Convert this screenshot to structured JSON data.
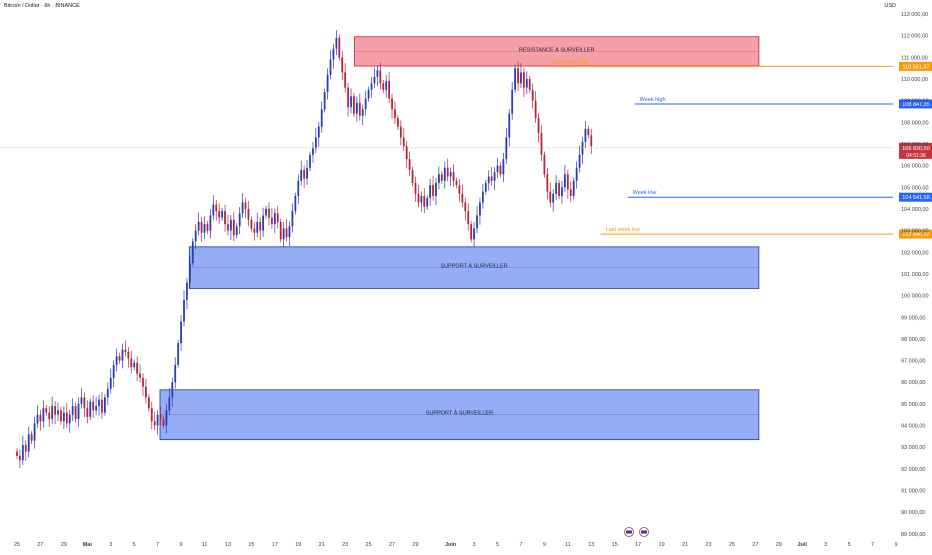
{
  "header": {
    "title": "Bitcoin / Dollar · 6h · BINANCE",
    "currency": "USD"
  },
  "colors": {
    "up": "#2a3cb5",
    "down": "#b5243b",
    "resistance_fill": "#f49aa1",
    "resistance_border": "#c0202f",
    "support_fill": "#8fa9f5",
    "support_border": "#1f3c9e",
    "orange": "#f59a0c",
    "blue_line": "#2962ff",
    "red_tag": "#c6343f",
    "axis_text": "#3a3e4a"
  },
  "chart_data": {
    "type": "candlestick",
    "title": "Bitcoin / Dollar · 6h · BINANCE",
    "y_axis": {
      "label": "USD",
      "range": [
        89000,
        113200
      ],
      "ticks": [
        {
          "value": 113000,
          "label": "113 000,00"
        },
        {
          "value": 112000,
          "label": "112 000,00"
        },
        {
          "value": 111000,
          "label": "111 000,00"
        },
        {
          "value": 110000,
          "label": "110 000,00"
        },
        {
          "value": 109000,
          "label": "109 000,00"
        },
        {
          "value": 108000,
          "label": "108 000,00"
        },
        {
          "value": 107000,
          "label": "107 000,00"
        },
        {
          "value": 106000,
          "label": "106 000,00"
        },
        {
          "value": 105000,
          "label": "105 000,00"
        },
        {
          "value": 104000,
          "label": "104 000,00"
        },
        {
          "value": 103000,
          "label": "103 000,00"
        },
        {
          "value": 102000,
          "label": "102 000,00"
        },
        {
          "value": 101000,
          "label": "101 000,00"
        },
        {
          "value": 100000,
          "label": "100 000,00"
        },
        {
          "value": 99000,
          "label": "99 000,00"
        },
        {
          "value": 98000,
          "label": "98 000,00"
        },
        {
          "value": 97000,
          "label": "97 000,00"
        },
        {
          "value": 96000,
          "label": "96 000,00"
        },
        {
          "value": 95000,
          "label": "95 000,00"
        },
        {
          "value": 94000,
          "label": "94 000,00"
        },
        {
          "value": 93000,
          "label": "93 000,00"
        },
        {
          "value": 92000,
          "label": "92 000,00"
        },
        {
          "value": 91000,
          "label": "91 000,00"
        },
        {
          "value": 90000,
          "label": "90 000,00"
        },
        {
          "value": 89000,
          "label": "89 000,00"
        }
      ]
    },
    "x_axis": {
      "ticks": [
        {
          "d": 0,
          "label": "25"
        },
        {
          "d": 2,
          "label": "27"
        },
        {
          "d": 4,
          "label": "29"
        },
        {
          "d": 6,
          "label": "Mai",
          "bold": true
        },
        {
          "d": 8,
          "label": "3"
        },
        {
          "d": 10,
          "label": "5"
        },
        {
          "d": 12,
          "label": "7"
        },
        {
          "d": 14,
          "label": "9"
        },
        {
          "d": 16,
          "label": "11"
        },
        {
          "d": 18,
          "label": "13"
        },
        {
          "d": 20,
          "label": "15"
        },
        {
          "d": 22,
          "label": "17"
        },
        {
          "d": 24,
          "label": "19"
        },
        {
          "d": 26,
          "label": "21"
        },
        {
          "d": 28,
          "label": "23"
        },
        {
          "d": 30,
          "label": "25"
        },
        {
          "d": 32,
          "label": "27"
        },
        {
          "d": 34,
          "label": "29"
        },
        {
          "d": 37,
          "label": "Juin",
          "bold": true
        },
        {
          "d": 39,
          "label": "3"
        },
        {
          "d": 41,
          "label": "5"
        },
        {
          "d": 43,
          "label": "7"
        },
        {
          "d": 45,
          "label": "9"
        },
        {
          "d": 47,
          "label": "11"
        },
        {
          "d": 49,
          "label": "13"
        },
        {
          "d": 51,
          "label": "15"
        },
        {
          "d": 53,
          "label": "17"
        },
        {
          "d": 55,
          "label": "19"
        },
        {
          "d": 57,
          "label": "21"
        },
        {
          "d": 59,
          "label": "23"
        },
        {
          "d": 61,
          "label": "25"
        },
        {
          "d": 63,
          "label": "27"
        },
        {
          "d": 65,
          "label": "29"
        },
        {
          "d": 67,
          "label": "Juil",
          "bold": true
        },
        {
          "d": 69,
          "label": "3"
        },
        {
          "d": 71,
          "label": "5"
        },
        {
          "d": 73,
          "label": "7"
        },
        {
          "d": 75,
          "label": "9"
        }
      ]
    },
    "zones": [
      {
        "name": "resistance",
        "label": "RESISTANCE À SURVEILLER",
        "top": 111950,
        "bottom": 110600,
        "d_start": 28.8,
        "d_end": 63.3
      },
      {
        "name": "support-upper",
        "label": "SUPPORT À SURVEILLER",
        "top": 102250,
        "bottom": 100330,
        "d_start": 14.7,
        "d_end": 63.3
      },
      {
        "name": "support-lower",
        "label": "SUPPORT À SURVEILLER",
        "top": 95650,
        "bottom": 93350,
        "d_start": 12.2,
        "d_end": 63.3
      }
    ],
    "levels": [
      {
        "name": "last-week-high",
        "label": "Last week high",
        "value": 110581.97,
        "tag": "110 581,97",
        "d_start": 45.2,
        "color": "orange"
      },
      {
        "name": "week-high",
        "label": "Week high",
        "value": 108847.35,
        "tag": "108 847,35",
        "d_start": 52.7,
        "color": "blue"
      },
      {
        "name": "week-low",
        "label": "Week low",
        "value": 104541.58,
        "tag": "104 541,58",
        "d_start": 52.1,
        "color": "blue"
      },
      {
        "name": "last-week-low",
        "label": "Last week low",
        "value": 102840.39,
        "tag": "102 840,39",
        "d_start": 49.8,
        "color": "orange"
      }
    ],
    "current_price": {
      "value": 106820.5,
      "tag": "106 820,50",
      "countdown": "04:51:36"
    },
    "candles_close": [
      92600,
      92400,
      93100,
      92800,
      93600,
      93300,
      94100,
      94500,
      94200,
      94800,
      94600,
      94300,
      94900,
      94500,
      94700,
      94200,
      94600,
      94100,
      94500,
      94900,
      94300,
      95000,
      95300,
      94800,
      94400,
      95100,
      94700,
      94900,
      95200,
      94600,
      95300,
      95700,
      96200,
      96800,
      97200,
      97000,
      97500,
      97400,
      97100,
      96700,
      96900,
      96400,
      96200,
      95800,
      95300,
      94800,
      94200,
      94000,
      94500,
      94300,
      94000,
      94700,
      95300,
      96000,
      96800,
      97800,
      98800,
      99800,
      100600,
      101500,
      102500,
      103000,
      103400,
      102900,
      103300,
      103000,
      103700,
      104200,
      103900,
      103600,
      103900,
      103300,
      103000,
      103500,
      102800,
      103200,
      103800,
      104300,
      104000,
      103500,
      103100,
      102900,
      103400,
      103000,
      103700,
      104000,
      103600,
      103300,
      103800,
      103400,
      102600,
      103100,
      102700,
      103200,
      103900,
      104600,
      105300,
      105800,
      105400,
      105900,
      106500,
      106800,
      107300,
      107800,
      108600,
      109400,
      110200,
      110900,
      111400,
      111900,
      111000,
      110300,
      109600,
      108700,
      109200,
      108400,
      108900,
      108300,
      108600,
      109100,
      109500,
      109800,
      110100,
      110400,
      109800,
      109500,
      109900,
      109100,
      108600,
      108200,
      107800,
      107300,
      106900,
      106300,
      105800,
      105200,
      104700,
      104300,
      104600,
      104100,
      104500,
      105100,
      104600,
      105200,
      105600,
      105300,
      105900,
      105500,
      105700,
      105300,
      105100,
      104700,
      104300,
      103900,
      103300,
      102600,
      103100,
      103700,
      104300,
      104800,
      105200,
      105500,
      105300,
      105700,
      106000,
      105600,
      106300,
      107300,
      108400,
      109500,
      110500,
      109800,
      110300,
      109600,
      110000,
      109500,
      109000,
      108200,
      107500,
      106500,
      105600,
      104800,
      104300,
      104700,
      105200,
      104600,
      105000,
      105600,
      104900,
      104600,
      105300,
      105900,
      106500,
      107100,
      107700,
      107400,
      106900
    ]
  }
}
